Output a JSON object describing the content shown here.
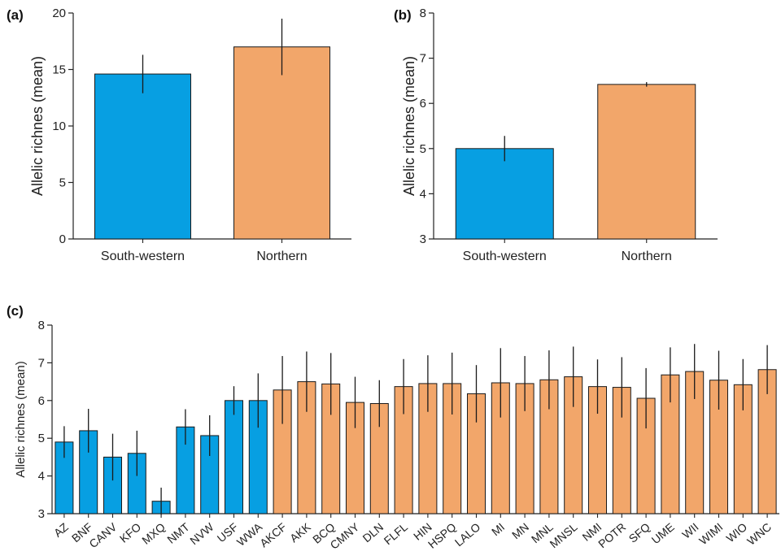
{
  "colors": {
    "southwestern": "#079FE2",
    "northern": "#F2A66A",
    "axis": "#222222"
  },
  "chart_data": [
    {
      "panel": "(a)",
      "type": "bar",
      "ylabel": "Allelic richnes (mean)",
      "ylim": [
        0,
        20
      ],
      "yticks": [
        0,
        5,
        10,
        15,
        20
      ],
      "categories": [
        "South-western",
        "Northern"
      ],
      "values": [
        14.6,
        17.0
      ],
      "errors": [
        1.7,
        2.5
      ],
      "groups": [
        "southwestern",
        "northern"
      ]
    },
    {
      "panel": "(b)",
      "type": "bar",
      "ylabel": "Allelic richnes (mean)",
      "ylim": [
        3,
        8
      ],
      "yticks": [
        3,
        4,
        5,
        6,
        7,
        8
      ],
      "categories": [
        "South-western",
        "Northern"
      ],
      "values": [
        5.0,
        6.42
      ],
      "errors": [
        0.28,
        0.05
      ],
      "groups": [
        "southwestern",
        "northern"
      ]
    },
    {
      "panel": "(c)",
      "type": "bar",
      "ylabel": "Allelic richnes (mean)",
      "ylim": [
        3,
        8
      ],
      "yticks": [
        3,
        4,
        5,
        6,
        7,
        8
      ],
      "categories": [
        "AZ",
        "BNF",
        "CANV",
        "KFO",
        "MXQ",
        "NMT",
        "NVW",
        "USF",
        "WWA",
        "AKCF",
        "AKK",
        "BCQ",
        "CMNY",
        "DLN",
        "FLFL",
        "HIN",
        "HSPQ",
        "LALO",
        "MI",
        "MN",
        "MNL",
        "MNSL",
        "NMI",
        "POTR",
        "SFQ",
        "UME",
        "WII",
        "WIMI",
        "WIO",
        "WNC"
      ],
      "values": [
        4.9,
        5.2,
        4.5,
        4.6,
        3.33,
        5.3,
        5.07,
        6.0,
        6.0,
        6.28,
        6.5,
        6.44,
        5.95,
        5.92,
        6.37,
        6.45,
        6.45,
        6.18,
        6.47,
        6.45,
        6.55,
        6.63,
        6.37,
        6.35,
        6.06,
        6.68,
        6.77,
        6.54,
        6.42,
        6.82
      ],
      "errors": [
        0.42,
        0.58,
        0.62,
        0.6,
        0.36,
        0.47,
        0.54,
        0.38,
        0.72,
        0.9,
        0.8,
        0.82,
        0.68,
        0.62,
        0.73,
        0.75,
        0.82,
        0.76,
        0.92,
        0.73,
        0.78,
        0.8,
        0.72,
        0.8,
        0.8,
        0.73,
        0.73,
        0.78,
        0.68,
        0.65
      ],
      "groups": [
        "southwestern",
        "southwestern",
        "southwestern",
        "southwestern",
        "southwestern",
        "southwestern",
        "southwestern",
        "southwestern",
        "southwestern",
        "northern",
        "northern",
        "northern",
        "northern",
        "northern",
        "northern",
        "northern",
        "northern",
        "northern",
        "northern",
        "northern",
        "northern",
        "northern",
        "northern",
        "northern",
        "northern",
        "northern",
        "northern",
        "northern",
        "northern",
        "northern"
      ]
    }
  ]
}
